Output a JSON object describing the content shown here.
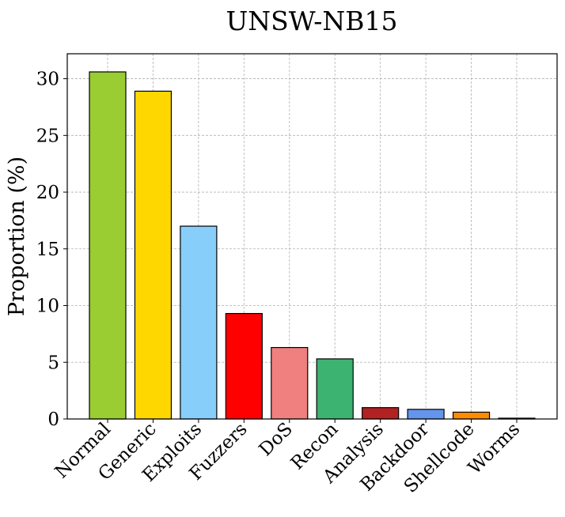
{
  "chart_data": {
    "type": "bar",
    "title": "UNSW-NB15",
    "xlabel": "",
    "ylabel": "Proportion (%)",
    "ylim": [
      0,
      32.2
    ],
    "yticks": [
      0,
      5,
      10,
      15,
      20,
      25,
      30
    ],
    "grid": true,
    "categories": [
      "Normal",
      "Generic",
      "Exploits",
      "Fuzzers",
      "DoS",
      "Recon",
      "Analysis",
      "Backdoor",
      "Shellcode",
      "Worms"
    ],
    "values": [
      30.6,
      28.9,
      17.0,
      9.3,
      6.3,
      5.3,
      1.0,
      0.85,
      0.6,
      0.07
    ],
    "colors": [
      "#9acd32",
      "#ffd700",
      "#87cefa",
      "#ff0000",
      "#f08080",
      "#3cb371",
      "#b22222",
      "#6495ed",
      "#ff8c00",
      "#6a0dad"
    ]
  }
}
